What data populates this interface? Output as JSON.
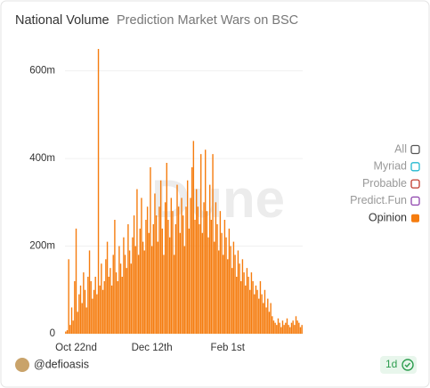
{
  "chart_data": {
    "type": "bar",
    "title": "National Volume",
    "subtitle": "Prediction Market Wars on BSC",
    "watermark": "Dune",
    "categories": [
      null,
      null,
      null,
      null,
      null,
      null,
      null,
      "Oct 22nd",
      null,
      null,
      null,
      null,
      null,
      null,
      null,
      null,
      null,
      null,
      null,
      null,
      null,
      null,
      null,
      null,
      null,
      null,
      null,
      null,
      null,
      null,
      null,
      null,
      null,
      null,
      null,
      null,
      null,
      null,
      null,
      null,
      null,
      null,
      null,
      null,
      null,
      null,
      null,
      null,
      null,
      null,
      null,
      null,
      null,
      null,
      null,
      null,
      null,
      null,
      "Dec 12th",
      null,
      null,
      null,
      null,
      null,
      null,
      null,
      null,
      null,
      null,
      null,
      null,
      null,
      null,
      null,
      null,
      null,
      null,
      null,
      null,
      null,
      null,
      null,
      null,
      null,
      null,
      null,
      null,
      null,
      null,
      null,
      null,
      null,
      null,
      null,
      null,
      null,
      null,
      null,
      null,
      null,
      null,
      null,
      null,
      null,
      null,
      null,
      null,
      null,
      null,
      "Feb 1st",
      null,
      null,
      null,
      null,
      null,
      null,
      null,
      null,
      null,
      null,
      null,
      null,
      null,
      null,
      null,
      null,
      null,
      null,
      null,
      null,
      null,
      null,
      null,
      null,
      null,
      null,
      null,
      null,
      null,
      null,
      null,
      null,
      null,
      null,
      null,
      null,
      null,
      null,
      null,
      null,
      null,
      null,
      null,
      null,
      null,
      null,
      null,
      null,
      null,
      null
    ],
    "series": [
      {
        "name": "Opinion",
        "color": "#f57c0e",
        "values": [
          5,
          8,
          170,
          20,
          60,
          30,
          120,
          240,
          50,
          90,
          110,
          70,
          140,
          100,
          60,
          130,
          190,
          120,
          80,
          100,
          130,
          90,
          650,
          110,
          160,
          100,
          120,
          170,
          210,
          130,
          150,
          110,
          180,
          260,
          140,
          120,
          200,
          160,
          130,
          220,
          180,
          150,
          250,
          190,
          160,
          220,
          270,
          200,
          330,
          180,
          240,
          310,
          210,
          190,
          260,
          290,
          230,
          380,
          200,
          250,
          320,
          270,
          210,
          290,
          350,
          240,
          180,
          300,
          390,
          260,
          220,
          310,
          280,
          180,
          250,
          340,
          290,
          230,
          310,
          270,
          200,
          290,
          350,
          240,
          310,
          380,
          440,
          260,
          330,
          290,
          250,
          410,
          230,
          300,
          420,
          280,
          220,
          340,
          260,
          410,
          210,
          300,
          250,
          190,
          280,
          230,
          180,
          260,
          220,
          170,
          240,
          200,
          150,
          210,
          180,
          130,
          190,
          160,
          120,
          170,
          140,
          110,
          150,
          130,
          100,
          140,
          120,
          90,
          110,
          100,
          80,
          120,
          90,
          70,
          100,
          60,
          80,
          50,
          70,
          40,
          30,
          25,
          20,
          35,
          25,
          15,
          30,
          20,
          25,
          35,
          20,
          15,
          25,
          30,
          20,
          40,
          30,
          25,
          15,
          20
        ]
      }
    ],
    "inactive_legend": [
      {
        "name": "All",
        "color": "#555555"
      },
      {
        "name": "Myriad",
        "color": "#22b8cf"
      },
      {
        "name": "Probable",
        "color": "#c0392b"
      },
      {
        "name": "Predict.Fun",
        "color": "#8e44ad"
      }
    ],
    "ylim": [
      0,
      650
    ],
    "yticks": [
      0,
      {
        "value": 200,
        "label": "200m"
      },
      {
        "value": 400,
        "label": "400m"
      },
      {
        "value": 600,
        "label": "600m"
      }
    ],
    "grid": true,
    "legend": "right",
    "footer": {
      "author": "@defioasis",
      "interval": "1d"
    }
  }
}
